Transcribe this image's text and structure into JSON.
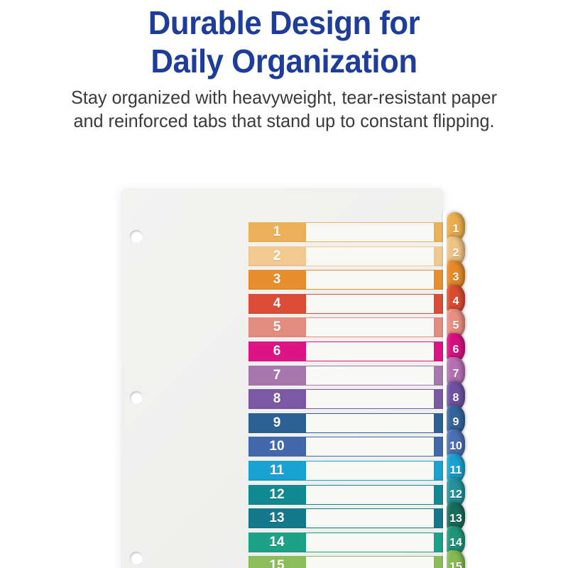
{
  "header": {
    "title_line1": "Durable Design for",
    "title_line2": "Daily Organization",
    "title_color": "#1d3d99",
    "subtitle_line1": "Stay organized with heavyweight, tear-resistant paper",
    "subtitle_line2": "and reinforced tabs that stand up to constant flipping.",
    "subtitle_color": "#3a3a3a"
  },
  "divider": {
    "description": "Numbered table-of-contents divider sheet with 15 color-coded edge tabs",
    "sheet_color": "#f1f1f0",
    "row_fill_color": "#f8f8f6",
    "rows": [
      {
        "label": "1",
        "color": "#ecb25b",
        "tab_color": "#eaac4c"
      },
      {
        "label": "2",
        "color": "#f0ca90",
        "tab_color": "#efc383"
      },
      {
        "label": "3",
        "color": "#e78f2e",
        "tab_color": "#e68a25"
      },
      {
        "label": "4",
        "color": "#db4d37",
        "tab_color": "#db4a30"
      },
      {
        "label": "5",
        "color": "#e28d80",
        "tab_color": "#e98e82"
      },
      {
        "label": "6",
        "color": "#dd1485",
        "tab_color": "#d8107f"
      },
      {
        "label": "7",
        "color": "#a877ad",
        "tab_color": "#b470b2"
      },
      {
        "label": "8",
        "color": "#7a5ba3",
        "tab_color": "#6f51a1"
      },
      {
        "label": "9",
        "color": "#2c6195",
        "tab_color": "#33649c"
      },
      {
        "label": "10",
        "color": "#4269ae",
        "tab_color": "#4a6fb4"
      },
      {
        "label": "11",
        "color": "#18a3d3",
        "tab_color": "#1ba0d0"
      },
      {
        "label": "12",
        "color": "#0f8a93",
        "tab_color": "#23929b"
      },
      {
        "label": "13",
        "color": "#14798c",
        "tab_color": "#186b5b"
      },
      {
        "label": "14",
        "color": "#1ba287",
        "tab_color": "#1e9478"
      },
      {
        "label": "15",
        "color": "#8bbe5a",
        "tab_color": "#86b94f"
      }
    ]
  }
}
